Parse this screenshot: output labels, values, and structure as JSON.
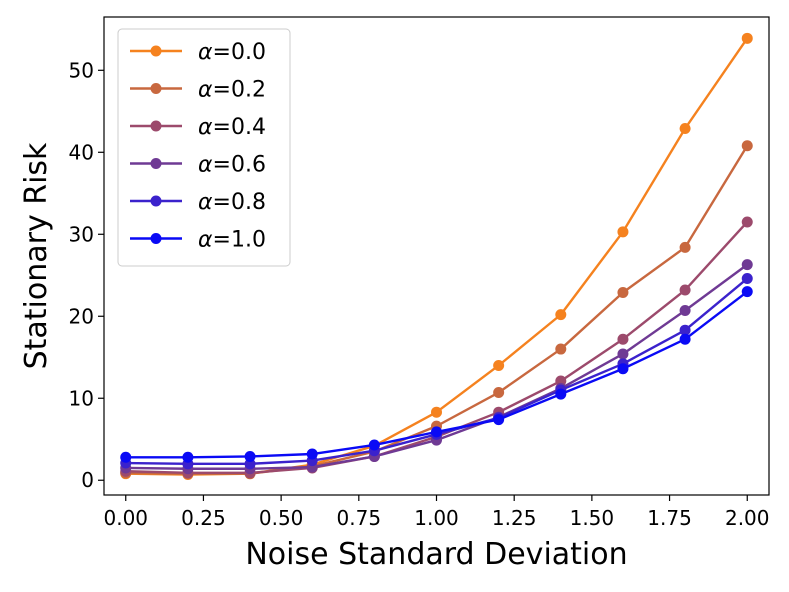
{
  "chart_data": {
    "type": "line",
    "title": "",
    "xlabel": "Noise Standard Deviation",
    "ylabel": "Stationary Risk",
    "xlim": [
      -0.07,
      2.07
    ],
    "ylim": [
      -1.8,
      56.5
    ],
    "x_ticks": [
      0.0,
      0.25,
      0.5,
      0.75,
      1.0,
      1.25,
      1.5,
      1.75,
      2.0
    ],
    "x_tick_labels": [
      "0.00",
      "0.25",
      "0.50",
      "0.75",
      "1.00",
      "1.25",
      "1.50",
      "1.75",
      "2.00"
    ],
    "y_ticks": [
      0,
      10,
      20,
      30,
      40,
      50
    ],
    "y_tick_labels": [
      "0",
      "10",
      "20",
      "30",
      "40",
      "50"
    ],
    "grid": false,
    "legend_position": "top-left",
    "x": [
      0.0,
      0.2,
      0.4,
      0.6,
      0.8,
      1.0,
      1.2,
      1.4,
      1.6,
      1.8,
      2.0
    ],
    "series": [
      {
        "name": "α=0.0",
        "greek": "α",
        "suffix": "=0.0",
        "color": "#F5821F",
        "values": [
          0.8,
          0.7,
          0.8,
          1.9,
          4.2,
          8.3,
          14.0,
          20.2,
          30.3,
          42.9,
          53.9
        ]
      },
      {
        "name": "α=0.2",
        "greek": "α",
        "suffix": "=0.2",
        "color": "#C8683F",
        "values": [
          0.9,
          0.8,
          0.8,
          1.7,
          3.5,
          6.6,
          10.7,
          16.0,
          22.9,
          28.4,
          40.8
        ]
      },
      {
        "name": "α=0.4",
        "greek": "α",
        "suffix": "=0.4",
        "color": "#9C4A6C",
        "values": [
          1.1,
          0.9,
          0.9,
          1.5,
          2.9,
          5.3,
          8.3,
          12.1,
          17.2,
          23.2,
          31.5
        ]
      },
      {
        "name": "α=0.6",
        "greek": "α",
        "suffix": "=0.6",
        "color": "#6F3A94",
        "values": [
          1.5,
          1.4,
          1.4,
          1.6,
          2.9,
          4.9,
          7.7,
          11.2,
          15.4,
          20.7,
          26.3
        ]
      },
      {
        "name": "α=0.8",
        "greek": "α",
        "suffix": "=0.8",
        "color": "#3B22CC",
        "values": [
          2.1,
          2.0,
          2.0,
          2.4,
          3.6,
          5.6,
          7.6,
          11.0,
          14.2,
          18.3,
          24.6
        ]
      },
      {
        "name": "α=1.0",
        "greek": "α",
        "suffix": "=1.0",
        "color": "#0A0AF5",
        "values": [
          2.8,
          2.8,
          2.9,
          3.2,
          4.3,
          5.9,
          7.4,
          10.5,
          13.6,
          17.2,
          23.0
        ]
      }
    ]
  }
}
